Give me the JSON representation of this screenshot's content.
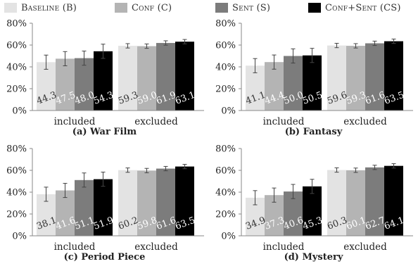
{
  "legend": [
    {
      "label": "Baseline (B)",
      "color": "#e3e3e3"
    },
    {
      "label": "Conf (C)",
      "color": "#b4b4b4"
    },
    {
      "label": "Sent (S)",
      "color": "#7c7c7c"
    },
    {
      "label": "Conf+Sent (CS)",
      "color": "#000000"
    }
  ],
  "chart_data": [
    {
      "type": "bar",
      "caption": "(a) War Film",
      "categories": [
        "included",
        "excluded"
      ],
      "ylim": [
        0,
        80
      ],
      "yticks": [
        "0%",
        "20%",
        "40%",
        "60%",
        "80%"
      ],
      "series": [
        {
          "name": "Baseline (B)",
          "values": [
            44.3,
            59.3
          ],
          "errors": [
            6.5,
            2.0
          ]
        },
        {
          "name": "Conf (C)",
          "values": [
            47.5,
            59.0
          ],
          "errors": [
            6.5,
            2.0
          ]
        },
        {
          "name": "Sent (S)",
          "values": [
            48.0,
            61.9
          ],
          "errors": [
            6.5,
            2.0
          ]
        },
        {
          "name": "Conf+Sent (CS)",
          "values": [
            54.3,
            63.1
          ],
          "errors": [
            6.5,
            2.0
          ]
        }
      ],
      "labels": [
        [
          "44.3",
          "59.3"
        ],
        [
          "47.5",
          "59.0"
        ],
        [
          "48.0",
          "61.9"
        ],
        [
          "54.3",
          "63.1"
        ]
      ]
    },
    {
      "type": "bar",
      "caption": "(b) Fantasy",
      "categories": [
        "included",
        "excluded"
      ],
      "ylim": [
        0,
        80
      ],
      "yticks": [
        "0%",
        "20%",
        "40%",
        "60%",
        "80%"
      ],
      "series": [
        {
          "name": "Baseline (B)",
          "values": [
            41.1,
            59.6
          ],
          "errors": [
            6.5,
            2.0
          ]
        },
        {
          "name": "Conf (C)",
          "values": [
            44.4,
            59.3
          ],
          "errors": [
            6.5,
            2.0
          ]
        },
        {
          "name": "Sent (S)",
          "values": [
            50.0,
            61.6
          ],
          "errors": [
            6.5,
            2.0
          ]
        },
        {
          "name": "Conf+Sent (CS)",
          "values": [
            50.5,
            63.5
          ],
          "errors": [
            6.5,
            2.0
          ]
        }
      ],
      "labels": [
        [
          "41.1",
          "59.6"
        ],
        [
          "44.4",
          "59.3"
        ],
        [
          "50.0",
          "61.6"
        ],
        [
          "50.5",
          "63.5"
        ]
      ]
    },
    {
      "type": "bar",
      "caption": "(c) Period Piece",
      "categories": [
        "included",
        "excluded"
      ],
      "ylim": [
        0,
        80
      ],
      "yticks": [
        "0%",
        "20%",
        "40%",
        "60%",
        "80%"
      ],
      "series": [
        {
          "name": "Baseline (B)",
          "values": [
            38.1,
            60.2
          ],
          "errors": [
            6.5,
            2.0
          ]
        },
        {
          "name": "Conf (C)",
          "values": [
            41.6,
            59.8
          ],
          "errors": [
            6.5,
            2.0
          ]
        },
        {
          "name": "Sent (S)",
          "values": [
            51.1,
            61.6
          ],
          "errors": [
            6.5,
            2.0
          ]
        },
        {
          "name": "Conf+Sent (CS)",
          "values": [
            51.9,
            63.5
          ],
          "errors": [
            6.5,
            2.0
          ]
        }
      ],
      "labels": [
        [
          "38.1",
          "60.2"
        ],
        [
          "41.6",
          "59.8"
        ],
        [
          "51.1",
          "61.6"
        ],
        [
          "51.9",
          "63.5"
        ]
      ]
    },
    {
      "type": "bar",
      "caption": "(d) Mystery",
      "categories": [
        "included",
        "excluded"
      ],
      "ylim": [
        0,
        80
      ],
      "yticks": [
        "0%",
        "20%",
        "40%",
        "60%",
        "80%"
      ],
      "series": [
        {
          "name": "Baseline (B)",
          "values": [
            34.9,
            60.3
          ],
          "errors": [
            6.5,
            2.0
          ]
        },
        {
          "name": "Conf (C)",
          "values": [
            37.3,
            60.1
          ],
          "errors": [
            6.5,
            2.0
          ]
        },
        {
          "name": "Sent (S)",
          "values": [
            40.6,
            62.7
          ],
          "errors": [
            6.5,
            2.0
          ]
        },
        {
          "name": "Conf+Sent (CS)",
          "values": [
            45.3,
            64.1
          ],
          "errors": [
            6.5,
            2.0
          ]
        }
      ],
      "labels": [
        [
          "34.9",
          "60.3"
        ],
        [
          "37.3",
          "60.1"
        ],
        [
          "40.6",
          "62.7"
        ],
        [
          "45.3",
          "64.1"
        ]
      ]
    }
  ]
}
